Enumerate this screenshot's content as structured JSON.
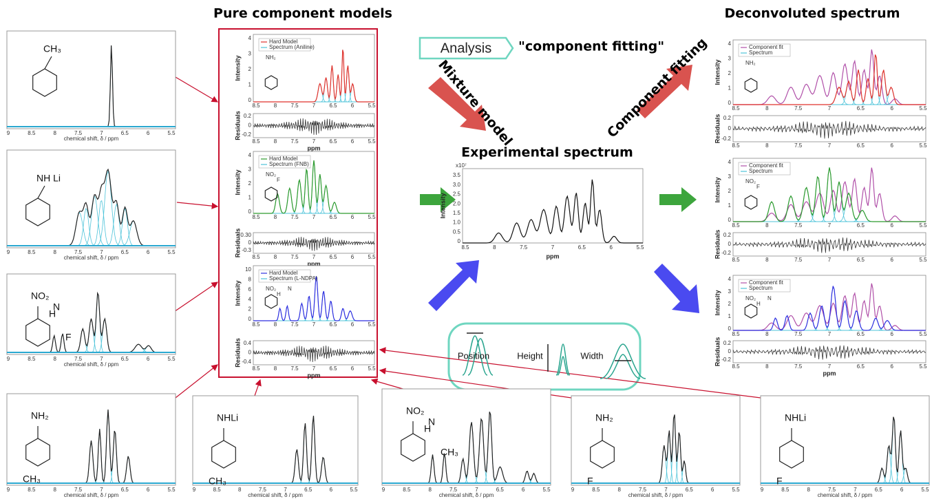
{
  "headings": {
    "pure": "Pure component models",
    "experimental": "Experimental spectrum",
    "deconvoluted": "Deconvoluted spectrum"
  },
  "analysis": {
    "box": "Analysis",
    "quote": "\"component fitting\""
  },
  "arrow_labels": {
    "mixture": "Mixture model",
    "fitting": "Component fitting"
  },
  "parameters": [
    "Position",
    "Height",
    "Width"
  ],
  "reference_xticks": [
    "9",
    "8.5",
    "8",
    "7.5",
    "7",
    "6.5",
    "6",
    "5.5"
  ],
  "reference_spectra": [
    {
      "xlabel": "chemical shift, δ / ppm",
      "groups": [
        "CH₃"
      ]
    },
    {
      "xlabel": "chemical shift, δ / ppm",
      "groups": [
        "NH Li"
      ]
    },
    {
      "xlabel": "chemical shift, δ / ppm",
      "groups": [
        "NO₂",
        "H",
        "N",
        "F"
      ]
    },
    {
      "xlabel": "chemical shift, δ / ppm",
      "groups": [
        "NH₂",
        "CH₃"
      ]
    },
    {
      "xlabel": "chemical shift, δ / ppm",
      "groups": [
        "NHLi",
        "CH₃"
      ]
    },
    {
      "xlabel": "chemical shift, δ / ppm",
      "groups": [
        "NO₂",
        "H",
        "N",
        "CH₃"
      ]
    },
    {
      "xlabel": "chemical shift, δ / ppm",
      "groups": [
        "NH₂",
        "F"
      ]
    },
    {
      "xlabel": "chemical shift, δ / ppm",
      "groups": [
        "NHLi",
        "F"
      ]
    }
  ],
  "models": [
    {
      "legend": [
        "Hard Model",
        "Spectrum (Aniline)"
      ],
      "groups": [
        "NH₂"
      ],
      "ylabel": "Intensity",
      "rlabel": "Residuals",
      "xlabel": "ppm",
      "yticks": [
        "0",
        "1",
        "2",
        "3",
        "4"
      ],
      "rticks": [
        "0.2",
        "0",
        "-0.2"
      ],
      "xticks": [
        "8.5",
        "8",
        "7.5",
        "7",
        "6.5",
        "6",
        "5.5"
      ]
    },
    {
      "legend": [
        "Hard Model",
        "Spectrum (FNB)"
      ],
      "groups": [
        "NO₂",
        "F"
      ],
      "ylabel": "Intensity",
      "rlabel": "Residuals",
      "xlabel": "ppm",
      "yticks": [
        "0",
        "1",
        "2",
        "3",
        "4"
      ],
      "rticks": [
        "0.30",
        "0",
        "-0.3"
      ],
      "xticks": [
        "8.5",
        "8",
        "7.5",
        "7",
        "6.5",
        "6",
        "5.5"
      ]
    },
    {
      "legend": [
        "Hard Model",
        "Spectrum (L-NDPA)"
      ],
      "groups": [
        "NO₂",
        "H",
        "N"
      ],
      "ylabel": "Intensity",
      "rlabel": "Residuals",
      "xlabel": "ppm",
      "yticks": [
        "0",
        "2",
        "4",
        "6",
        "8",
        "10"
      ],
      "rticks": [
        "0.4",
        "0",
        "-0.4"
      ],
      "xticks": [
        "8.5",
        "8",
        "7.5",
        "7",
        "6.5",
        "6",
        "5.5"
      ]
    }
  ],
  "experimental": {
    "ylabel": "Intensity",
    "xlabel": "ppm",
    "multiplier": "x10⁷",
    "yticks": [
      "0",
      "0.5",
      "1.0",
      "1.5",
      "2.0",
      "2.5",
      "3.0",
      "3.5"
    ],
    "xticks": [
      "8.5",
      "8",
      "7.5",
      "7",
      "6.5",
      "6",
      "5.5"
    ]
  },
  "deconvoluted": [
    {
      "legend": [
        "Component fit",
        "Spectrum"
      ],
      "groups": [
        "NH₂"
      ],
      "ylabel": "Intensity",
      "rlabel": "Residuals",
      "yticks": [
        "0",
        "1",
        "2",
        "3",
        "4"
      ],
      "rticks": [
        "0.2",
        "0",
        "-0.2"
      ],
      "xticks": [
        "8.5",
        "8",
        "7.5",
        "7",
        "6.5",
        "6",
        "5.5"
      ]
    },
    {
      "legend": [
        "Component fit",
        "Spectrum"
      ],
      "groups": [
        "NO₂",
        "F"
      ],
      "ylabel": "Intensity",
      "rlabel": "Residuals",
      "yticks": [
        "0",
        "1",
        "2",
        "3",
        "4"
      ],
      "rticks": [
        "0.2",
        "0",
        "-0.2"
      ],
      "xticks": [
        "8.5",
        "8",
        "7.5",
        "7",
        "6.5",
        "6",
        "5.5"
      ]
    },
    {
      "legend": [
        "Component fit",
        "Spectrum"
      ],
      "groups": [
        "NO₂",
        "H",
        "N"
      ],
      "ylabel": "Intensity",
      "rlabel": "Residuals",
      "xlabel": "ppm",
      "yticks": [
        "0",
        "1",
        "2",
        "3",
        "4"
      ],
      "rticks": [
        "0.2",
        "0",
        "-0.2"
      ],
      "xticks": [
        "8.5",
        "8",
        "7.5",
        "7",
        "6.5",
        "6",
        "5.5"
      ]
    }
  ]
}
